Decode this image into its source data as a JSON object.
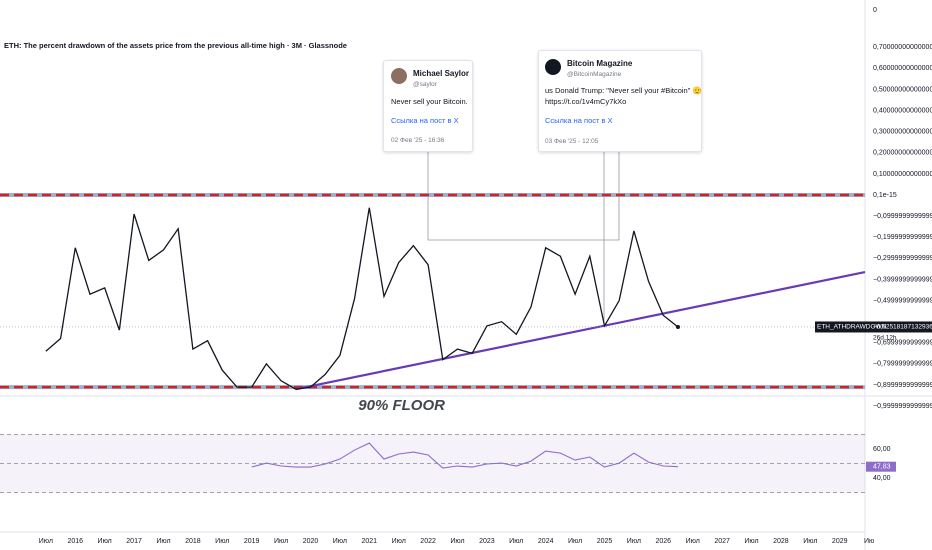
{
  "chart_data": [
    {
      "type": "line",
      "title": "ETH: The percent drawdown of the assets price from the previous all-time high · 3M · Glassnode",
      "top_axis_label": "0",
      "x": [
        2015.5,
        2015.75,
        2016,
        2016.25,
        2016.5,
        2016.75,
        2017,
        2017.25,
        2017.5,
        2017.75,
        2018,
        2018.25,
        2018.5,
        2018.75,
        2019,
        2019.25,
        2019.5,
        2019.75,
        2020,
        2020.25,
        2020.5,
        2020.75,
        2021,
        2021.25,
        2021.5,
        2021.75,
        2022,
        2022.25,
        2022.5,
        2022.75,
        2023,
        2023.25,
        2023.5,
        2023.75,
        2024,
        2024.25,
        2024.5,
        2024.75,
        2025,
        2025.25,
        2025.5,
        2025.75,
        2026,
        2026.25
      ],
      "series": [
        {
          "name": "ETH_ATHDRAWDOWN",
          "color": "#131722",
          "values": [
            -0.74,
            -0.68,
            -0.25,
            -0.47,
            -0.44,
            -0.64,
            -0.09,
            -0.31,
            -0.26,
            -0.16,
            -0.73,
            -0.69,
            -0.83,
            -0.91,
            -0.91,
            -0.8,
            -0.88,
            -0.92,
            -0.91,
            -0.85,
            -0.76,
            -0.49,
            -0.06,
            -0.48,
            -0.32,
            -0.24,
            -0.33,
            -0.78,
            -0.73,
            -0.75,
            -0.62,
            -0.6,
            -0.66,
            -0.53,
            -0.25,
            -0.29,
            -0.47,
            -0.29,
            -0.62,
            -0.5,
            -0.17,
            -0.41,
            -0.57,
            -0.6251818713293668
          ],
          "last_label": "−0,6251818713293668",
          "countdown": "26d 12h"
        }
      ],
      "xlim": [
        2014.72,
        2029.43
      ],
      "xticks": [
        {
          "value": 2015.5,
          "label": "Июл"
        },
        2016,
        {
          "value": 2016.5,
          "label": "Июл"
        },
        2017,
        {
          "value": 2017.5,
          "label": "Июл"
        },
        2018,
        {
          "value": 2018.5,
          "label": "Июл"
        },
        2019,
        {
          "value": 2019.5,
          "label": "Июл"
        },
        2020,
        {
          "value": 2020.5,
          "label": "Июл"
        },
        2021,
        {
          "value": 2021.5,
          "label": "Июл"
        },
        2022,
        {
          "value": 2022.5,
          "label": "Июл"
        },
        2023,
        {
          "value": 2023.5,
          "label": "Июл"
        },
        2024,
        {
          "value": 2024.5,
          "label": "Июл"
        },
        2025,
        {
          "value": 2025.5,
          "label": "Июл"
        },
        2026,
        {
          "value": 2026.5,
          "label": "Июл"
        },
        2027,
        {
          "value": 2027.5,
          "label": "Июл"
        },
        2028,
        {
          "value": 2028.5,
          "label": "Июл"
        },
        2029,
        {
          "value": 2029.5,
          "label": "Ию"
        }
      ],
      "ylim": [
        -0.938,
        0.924
      ],
      "yticks": [
        {
          "value": 0.7,
          "label": "0,7000000000000001"
        },
        {
          "value": 0.6,
          "label": "0,6000000000000001"
        },
        {
          "value": 0.5,
          "label": "0,5000000000000002"
        },
        {
          "value": 0.4,
          "label": "0,4000000000000002"
        },
        {
          "value": 0.3,
          "label": "0,3000000000000002"
        },
        {
          "value": 0.2,
          "label": "0,2000000000000002"
        },
        {
          "value": 0.1,
          "label": "0,1000000000000002"
        },
        {
          "value": 0,
          "label": "0,1e-15"
        },
        {
          "value": -0.1,
          "label": "−0,0999999999999999"
        },
        {
          "value": -0.2,
          "label": "−0,1999999999999999"
        },
        {
          "value": -0.3,
          "label": "−0,2999999999999999"
        },
        {
          "value": -0.4,
          "label": "−0,3999999999999999"
        },
        {
          "value": -0.5,
          "label": "−0,4999999999999999"
        },
        {
          "value": -0.7,
          "label": "−0,6999999999999998"
        },
        {
          "value": -0.8,
          "label": "−0,7999999999999998"
        },
        {
          "value": -0.9,
          "label": "−0,8999999999999998"
        },
        {
          "value": -1,
          "label": "−0,9999999999999998"
        }
      ],
      "levels": [
        {
          "value": 0,
          "color": "#c62828"
        },
        {
          "value": -0.91,
          "color": "#c62828"
        }
      ],
      "trendline": {
        "x": [
          2019.75,
          2029.43
        ],
        "y": [
          -0.92,
          -0.365
        ],
        "color": "#673ab7"
      },
      "annotations": [
        {
          "text": "90% FLOOR",
          "x": 2021.55,
          "y": -1.0
        }
      ]
    },
    {
      "type": "line",
      "x": [
        2019,
        2019.25,
        2019.5,
        2019.75,
        2020,
        2020.25,
        2020.5,
        2020.75,
        2021,
        2021.25,
        2021.5,
        2021.75,
        2022,
        2022.25,
        2022.5,
        2022.75,
        2023,
        2023.25,
        2023.5,
        2023.75,
        2024,
        2024.25,
        2024.5,
        2024.75,
        2025,
        2025.25,
        2025.5,
        2025.75,
        2026,
        2026.25
      ],
      "series": [
        {
          "color": "#8e6cc9",
          "values": [
            47.6,
            50.3,
            48.3,
            47.6,
            47.6,
            49.7,
            53.1,
            59.3,
            64.1,
            53.1,
            56.6,
            57.9,
            55.9,
            46.9,
            48.3,
            47.6,
            49.7,
            50.3,
            48.3,
            51.7,
            58.6,
            57.2,
            52.4,
            54.5,
            47.6,
            50.3,
            57.2,
            51.0,
            48.3,
            47.83
          ],
          "last_label": "47,83"
        }
      ],
      "ylim": [
        2.8,
        95.2
      ],
      "yticks": [
        {
          "value": 60,
          "label": "60,00"
        },
        {
          "value": 40,
          "label": "40,00"
        }
      ],
      "band": [
        30,
        70
      ],
      "levels": [
        70,
        50,
        30
      ]
    }
  ],
  "posts": [
    {
      "name": "Michael Saylor",
      "handle": "@saylor",
      "text": "Never sell your Bitcoin.",
      "link": "Ссылка на пост в X",
      "date": "02 Фев '25 - 16:36"
    },
    {
      "name": "Bitcoin Magazine",
      "handle": "@BitcoinMagazine",
      "text": "us Donald Trump: \"Never sell your #Bitcoin\" 🫡",
      "url": "https://t.co/1v4mCy7kXo",
      "link": "Ссылка на пост в X",
      "date": "03 Фев '25 - 12:05"
    }
  ]
}
